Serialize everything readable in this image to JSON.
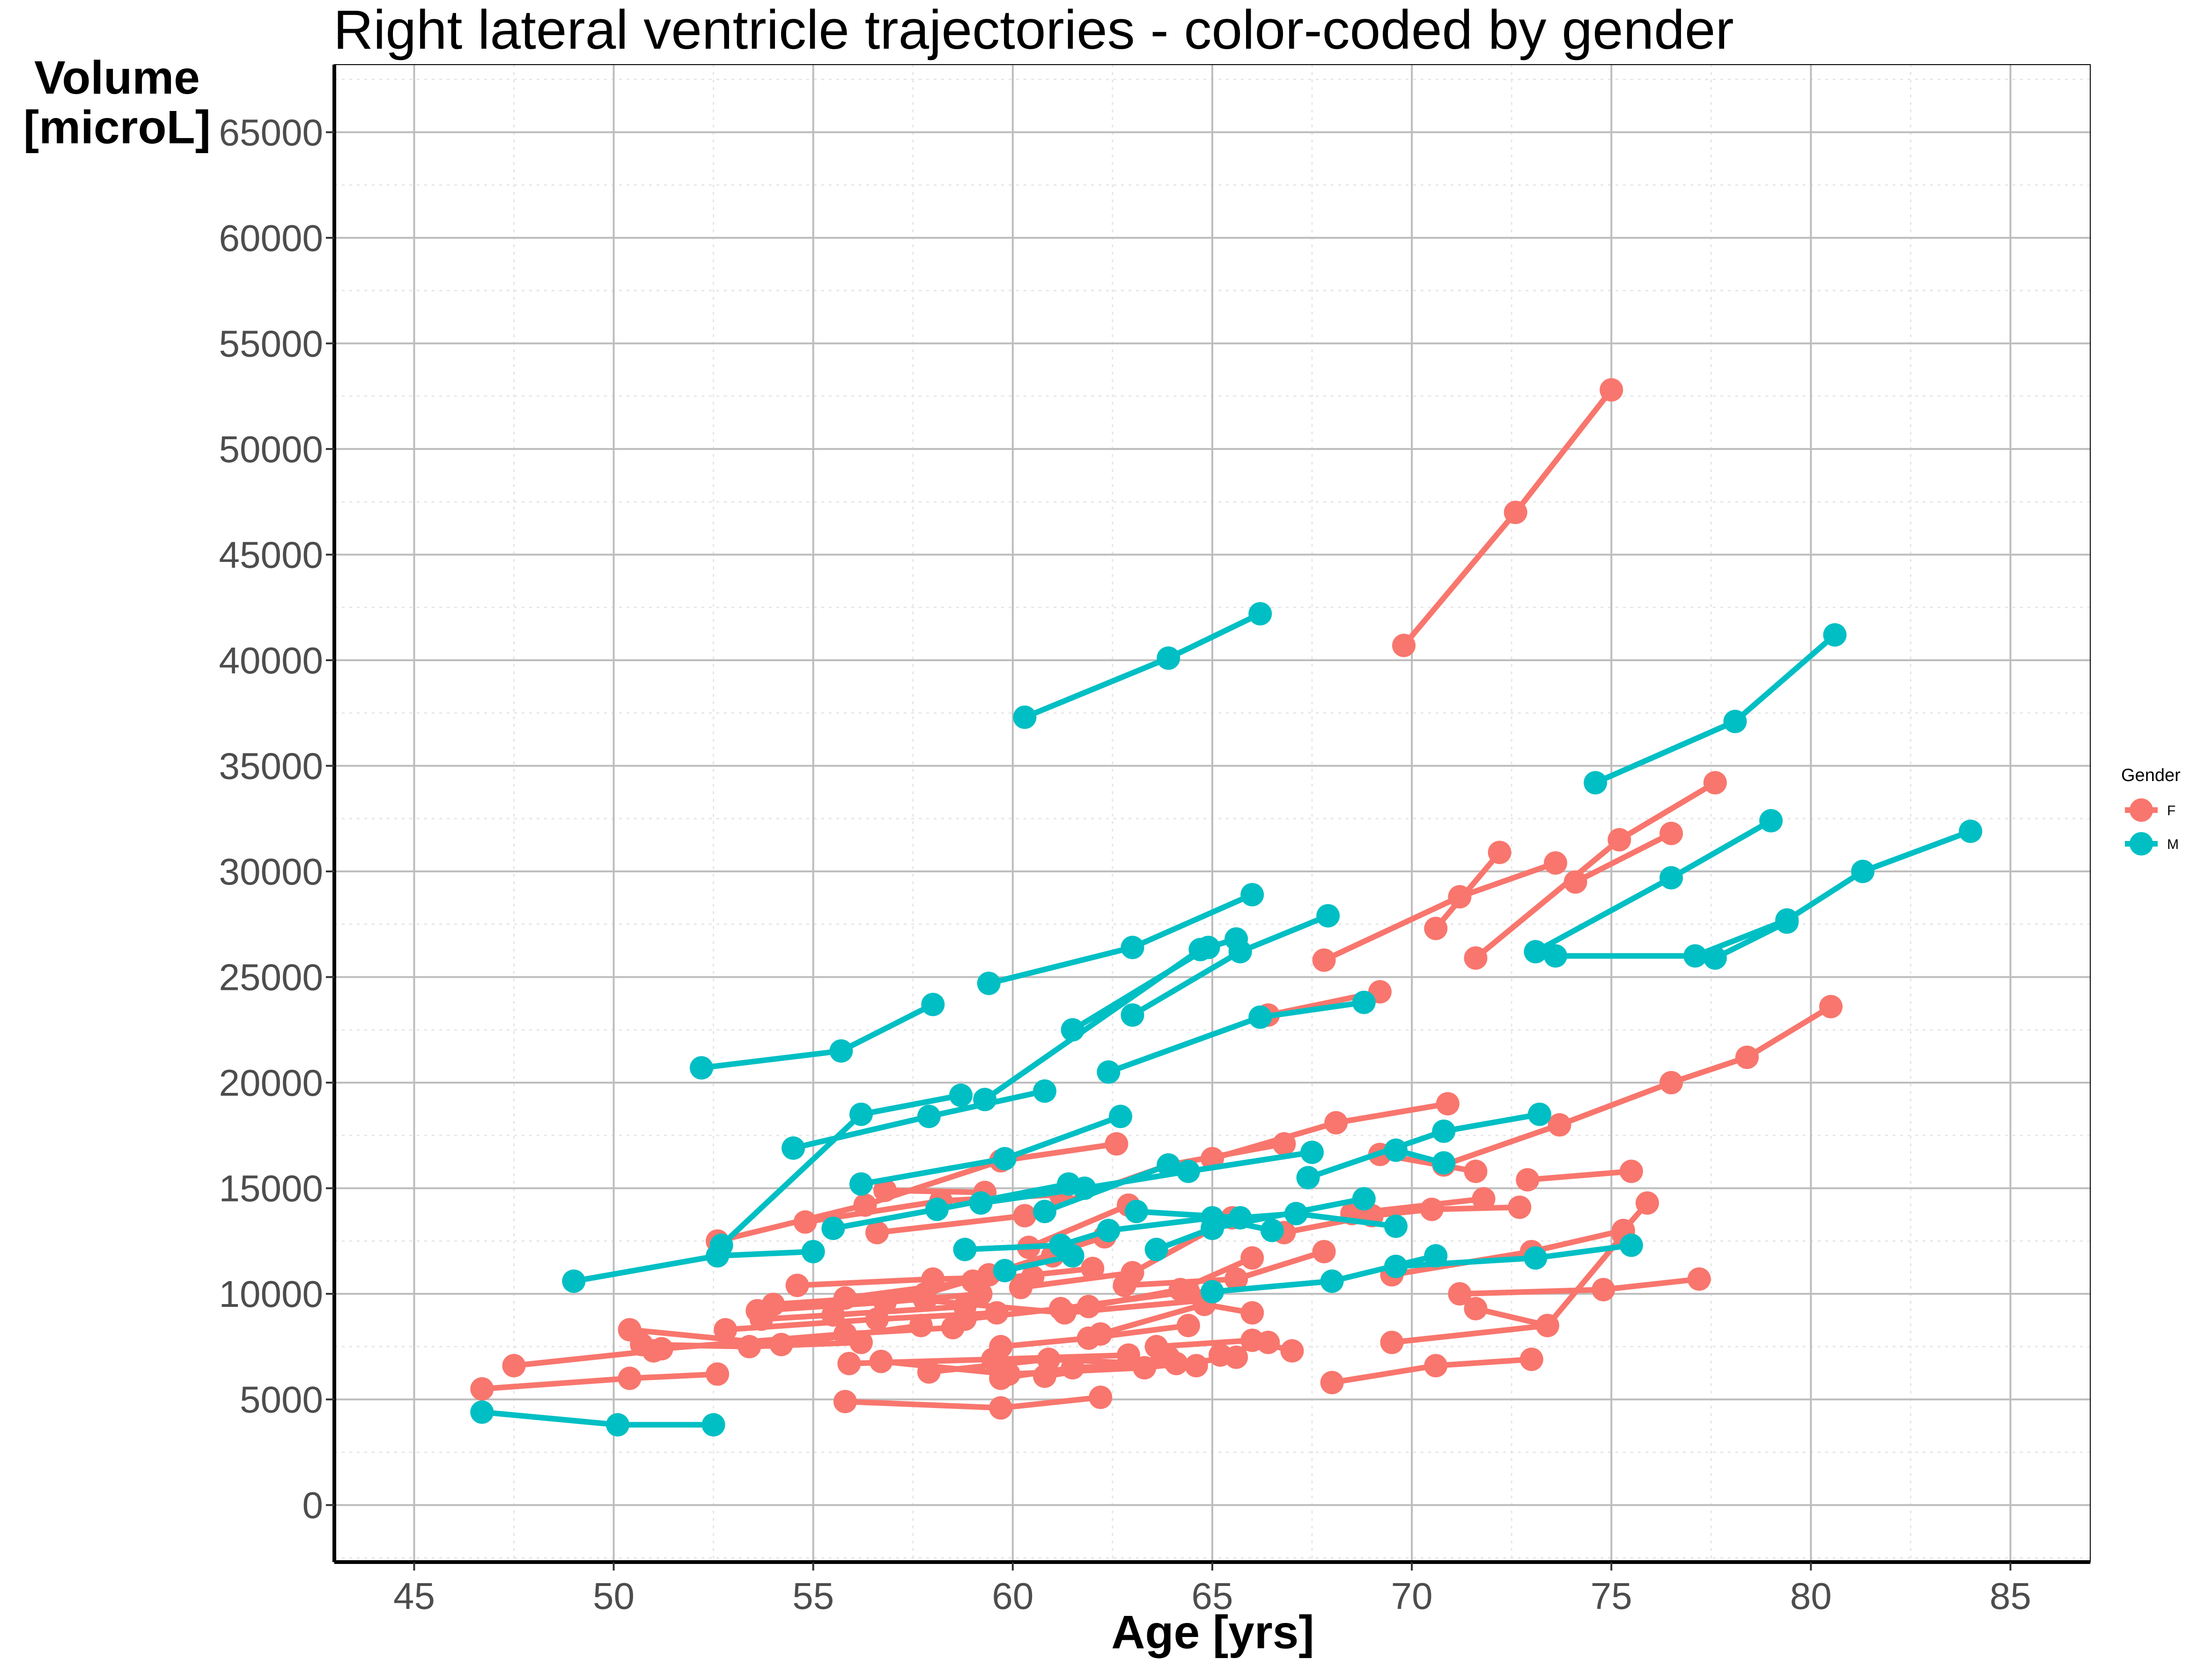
{
  "chart_data": {
    "type": "line",
    "title": "Right lateral ventricle trajectories - color-coded by gender",
    "xlabel": "Age [yrs]",
    "ylabel": "Volume [microL]",
    "xlim": [
      43,
      87
    ],
    "ylim": [
      -2700,
      68200
    ],
    "xticks": [
      45,
      50,
      55,
      60,
      65,
      70,
      75,
      80,
      85
    ],
    "yticks": [
      0,
      5000,
      10000,
      15000,
      20000,
      25000,
      30000,
      35000,
      40000,
      45000,
      50000,
      55000,
      60000,
      65000
    ],
    "grid": true,
    "legend": {
      "title": "Gender",
      "placement": "right",
      "entries": [
        {
          "label": "F",
          "color": "#F8766D"
        },
        {
          "label": "M",
          "color": "#00BFC4"
        }
      ]
    },
    "colors": {
      "F": "#F8766D",
      "M": "#00BFC4"
    },
    "series": [
      {
        "group": "F",
        "points": [
          [
            69.8,
            40700
          ],
          [
            72.6,
            47000
          ],
          [
            75.0,
            52800
          ]
        ]
      },
      {
        "group": "F",
        "points": [
          [
            67.8,
            25800
          ],
          [
            71.2,
            28800
          ],
          [
            73.6,
            30400
          ]
        ]
      },
      {
        "group": "F",
        "points": [
          [
            70.6,
            27300
          ],
          [
            72.2,
            30900
          ]
        ]
      },
      {
        "group": "F",
        "points": [
          [
            71.6,
            25900
          ],
          [
            75.2,
            31500
          ],
          [
            77.6,
            34200
          ]
        ]
      },
      {
        "group": "F",
        "points": [
          [
            74.1,
            29500
          ],
          [
            76.5,
            31800
          ]
        ]
      },
      {
        "group": "F",
        "points": [
          [
            66.4,
            23200
          ],
          [
            69.2,
            24300
          ]
        ]
      },
      {
        "group": "F",
        "points": [
          [
            70.8,
            16100
          ],
          [
            73.7,
            18000
          ],
          [
            76.5,
            20000
          ],
          [
            78.4,
            21200
          ],
          [
            80.5,
            23600
          ]
        ]
      },
      {
        "group": "F",
        "points": [
          [
            65.0,
            16400
          ],
          [
            68.1,
            18100
          ],
          [
            70.9,
            19000
          ]
        ]
      },
      {
        "group": "F",
        "points": [
          [
            72.9,
            15400
          ],
          [
            75.5,
            15800
          ]
        ]
      },
      {
        "group": "F",
        "points": [
          [
            69.2,
            16600
          ],
          [
            71.6,
            15800
          ]
        ]
      },
      {
        "group": "F",
        "points": [
          [
            52.6,
            12500
          ],
          [
            56.3,
            14200
          ],
          [
            59.7,
            16300
          ],
          [
            62.6,
            17100
          ]
        ]
      },
      {
        "group": "F",
        "points": [
          [
            54.8,
            13400
          ],
          [
            58.2,
            14400
          ],
          [
            61.2,
            14700
          ]
        ]
      },
      {
        "group": "F",
        "points": [
          [
            56.8,
            14900
          ],
          [
            59.3,
            14800
          ]
        ]
      },
      {
        "group": "F",
        "points": [
          [
            56.6,
            12900
          ],
          [
            60.3,
            13700
          ],
          [
            63.9,
            16100
          ],
          [
            66.8,
            17100
          ]
        ]
      },
      {
        "group": "F",
        "points": [
          [
            60.4,
            12200
          ],
          [
            62.9,
            14200
          ]
        ]
      },
      {
        "group": "F",
        "points": [
          [
            66.8,
            12900
          ],
          [
            69.0,
            13700
          ],
          [
            70.5,
            14000
          ],
          [
            72.7,
            14100
          ]
        ]
      },
      {
        "group": "F",
        "points": [
          [
            68.5,
            13800
          ],
          [
            71.8,
            14500
          ]
        ]
      },
      {
        "group": "F",
        "points": [
          [
            69.5,
            10900
          ],
          [
            73.0,
            12000
          ],
          [
            75.3,
            13000
          ],
          [
            75.9,
            14300
          ]
        ]
      },
      {
        "group": "F",
        "points": [
          [
            71.2,
            10000
          ],
          [
            74.8,
            10200
          ],
          [
            77.2,
            10700
          ]
        ]
      },
      {
        "group": "F",
        "points": [
          [
            71.6,
            9300
          ],
          [
            73.4,
            8500
          ]
        ]
      },
      {
        "group": "F",
        "points": [
          [
            69.5,
            7700
          ],
          [
            73.4,
            8500
          ],
          [
            75.3,
            12800
          ]
        ]
      },
      {
        "group": "F",
        "points": [
          [
            68.0,
            5800
          ],
          [
            70.6,
            6600
          ],
          [
            73.0,
            6900
          ]
        ]
      },
      {
        "group": "F",
        "points": [
          [
            54.0,
            9500
          ],
          [
            57.8,
            10000
          ],
          [
            61.0,
            11800
          ]
        ]
      },
      {
        "group": "F",
        "points": [
          [
            54.6,
            10400
          ],
          [
            58.0,
            10700
          ],
          [
            60.5,
            10800
          ]
        ]
      },
      {
        "group": "F",
        "points": [
          [
            53.6,
            9200
          ],
          [
            56.8,
            9600
          ],
          [
            59.2,
            10000
          ]
        ]
      },
      {
        "group": "F",
        "points": [
          [
            53.7,
            8800
          ],
          [
            55.5,
            9000
          ],
          [
            58.8,
            9400
          ]
        ]
      },
      {
        "group": "F",
        "points": [
          [
            55.8,
            9800
          ],
          [
            59.0,
            10600
          ],
          [
            62.0,
            11200
          ]
        ]
      },
      {
        "group": "F",
        "points": [
          [
            59.4,
            10900
          ],
          [
            62.3,
            12700
          ]
        ]
      },
      {
        "group": "F",
        "points": [
          [
            58.8,
            8800
          ],
          [
            61.2,
            9300
          ],
          [
            64.4,
            10100
          ]
        ]
      },
      {
        "group": "F",
        "points": [
          [
            57.8,
            9700
          ],
          [
            61.3,
            9100
          ],
          [
            64.8,
            9700
          ]
        ]
      },
      {
        "group": "F",
        "points": [
          [
            62.8,
            10400
          ],
          [
            65.6,
            10700
          ],
          [
            67.8,
            12000
          ]
        ]
      },
      {
        "group": "F",
        "points": [
          [
            61.9,
            9400
          ],
          [
            64.2,
            10200
          ],
          [
            66.0,
            11700
          ]
        ]
      },
      {
        "group": "F",
        "points": [
          [
            60.2,
            10300
          ],
          [
            63.0,
            11000
          ],
          [
            65.5,
            13600
          ]
        ]
      },
      {
        "group": "F",
        "points": [
          [
            50.4,
            8300
          ],
          [
            54.2,
            7600
          ],
          [
            57.7,
            8500
          ]
        ]
      },
      {
        "group": "F",
        "points": [
          [
            50.7,
            7600
          ],
          [
            53.4,
            7500
          ],
          [
            56.2,
            7700
          ]
        ]
      },
      {
        "group": "F",
        "points": [
          [
            51.2,
            7400
          ],
          [
            55.8,
            8100
          ],
          [
            58.5,
            8400
          ]
        ]
      },
      {
        "group": "F",
        "points": [
          [
            52.8,
            8300
          ],
          [
            56.6,
            8800
          ],
          [
            59.6,
            9100
          ]
        ]
      },
      {
        "group": "F",
        "points": [
          [
            59.7,
            7500
          ],
          [
            61.9,
            7900
          ],
          [
            64.4,
            8500
          ]
        ]
      },
      {
        "group": "F",
        "points": [
          [
            62.2,
            8100
          ],
          [
            64.8,
            9500
          ],
          [
            66.0,
            9100
          ]
        ]
      },
      {
        "group": "F",
        "points": [
          [
            57.9,
            6300
          ],
          [
            60.9,
            6900
          ],
          [
            64.6,
            6600
          ]
        ]
      },
      {
        "group": "F",
        "points": [
          [
            56.7,
            6800
          ],
          [
            59.9,
            6200
          ],
          [
            63.3,
            6500
          ],
          [
            65.6,
            7000
          ]
        ]
      },
      {
        "group": "F",
        "points": [
          [
            55.9,
            6700
          ],
          [
            59.5,
            6900
          ],
          [
            62.9,
            7100
          ]
        ]
      },
      {
        "group": "F",
        "points": [
          [
            59.7,
            6000
          ],
          [
            61.5,
            6500
          ],
          [
            64.1,
            6700
          ]
        ]
      },
      {
        "group": "F",
        "points": [
          [
            60.8,
            6100
          ],
          [
            63.9,
            7000
          ]
        ]
      },
      {
        "group": "F",
        "points": [
          [
            63.6,
            7500
          ],
          [
            66.0,
            7800
          ],
          [
            67.0,
            7300
          ]
        ]
      },
      {
        "group": "F",
        "points": [
          [
            65.2,
            7100
          ],
          [
            66.4,
            7700
          ]
        ]
      },
      {
        "group": "F",
        "points": [
          [
            46.7,
            5500
          ],
          [
            50.4,
            6000
          ],
          [
            52.6,
            6200
          ]
        ]
      },
      {
        "group": "F",
        "points": [
          [
            47.5,
            6600
          ],
          [
            51.0,
            7300
          ]
        ]
      },
      {
        "group": "F",
        "points": [
          [
            55.8,
            4900
          ],
          [
            59.7,
            4600
          ],
          [
            62.2,
            5100
          ]
        ]
      },
      {
        "group": "M",
        "points": [
          [
            60.3,
            37300
          ],
          [
            63.9,
            40100
          ],
          [
            66.2,
            42200
          ]
        ]
      },
      {
        "group": "M",
        "points": [
          [
            74.6,
            34200
          ],
          [
            78.1,
            37100
          ],
          [
            80.6,
            41200
          ]
        ]
      },
      {
        "group": "M",
        "points": [
          [
            73.1,
            26200
          ],
          [
            76.5,
            29700
          ],
          [
            79.0,
            32400
          ]
        ]
      },
      {
        "group": "M",
        "points": [
          [
            73.6,
            26000
          ],
          [
            77.1,
            26000
          ],
          [
            79.4,
            27700
          ],
          [
            81.3,
            30000
          ],
          [
            84.0,
            31900
          ]
        ]
      },
      {
        "group": "M",
        "points": [
          [
            77.6,
            25900
          ],
          [
            79.4,
            27600
          ]
        ]
      },
      {
        "group": "M",
        "points": [
          [
            59.4,
            24700
          ],
          [
            63.0,
            26400
          ],
          [
            66.0,
            28900
          ]
        ]
      },
      {
        "group": "M",
        "points": [
          [
            61.5,
            22500
          ],
          [
            64.9,
            26400
          ],
          [
            65.6,
            26800
          ]
        ]
      },
      {
        "group": "M",
        "points": [
          [
            63.0,
            23200
          ],
          [
            65.7,
            26200
          ],
          [
            67.9,
            27900
          ]
        ]
      },
      {
        "group": "M",
        "points": [
          [
            62.4,
            20500
          ],
          [
            66.2,
            23100
          ],
          [
            68.8,
            23800
          ]
        ]
      },
      {
        "group": "M",
        "points": [
          [
            52.2,
            20700
          ],
          [
            55.7,
            21500
          ],
          [
            58.0,
            23700
          ]
        ]
      },
      {
        "group": "M",
        "points": [
          [
            54.5,
            16900
          ],
          [
            57.9,
            18400
          ],
          [
            60.8,
            19600
          ]
        ]
      },
      {
        "group": "M",
        "points": [
          [
            52.7,
            12300
          ],
          [
            56.2,
            18500
          ],
          [
            58.7,
            19400
          ]
        ]
      },
      {
        "group": "M",
        "points": [
          [
            56.2,
            15200
          ],
          [
            59.8,
            16400
          ],
          [
            62.7,
            18400
          ]
        ]
      },
      {
        "group": "M",
        "points": [
          [
            59.3,
            19200
          ],
          [
            64.7,
            26300
          ]
        ]
      },
      {
        "group": "M",
        "points": [
          [
            55.5,
            13100
          ],
          [
            58.1,
            14000
          ],
          [
            61.4,
            15200
          ]
        ]
      },
      {
        "group": "M",
        "points": [
          [
            59.2,
            14300
          ],
          [
            61.8,
            15000
          ],
          [
            64.4,
            15800
          ],
          [
            67.5,
            16700
          ]
        ]
      },
      {
        "group": "M",
        "points": [
          [
            60.8,
            13900
          ],
          [
            63.9,
            16100
          ]
        ]
      },
      {
        "group": "M",
        "points": [
          [
            58.8,
            12100
          ],
          [
            61.2,
            12300
          ],
          [
            62.4,
            13000
          ],
          [
            65.0,
            13600
          ],
          [
            66.5,
            13000
          ]
        ]
      },
      {
        "group": "M",
        "points": [
          [
            63.1,
            13900
          ],
          [
            65.7,
            13600
          ],
          [
            67.1,
            13800
          ],
          [
            69.6,
            13200
          ]
        ]
      },
      {
        "group": "M",
        "points": [
          [
            63.6,
            12100
          ],
          [
            65.0,
            13100
          ],
          [
            68.8,
            14500
          ]
        ]
      },
      {
        "group": "M",
        "points": [
          [
            67.4,
            15500
          ],
          [
            70.8,
            17700
          ],
          [
            73.2,
            18500
          ]
        ]
      },
      {
        "group": "M",
        "points": [
          [
            69.6,
            16800
          ],
          [
            70.8,
            16200
          ]
        ]
      },
      {
        "group": "M",
        "points": [
          [
            49.0,
            10600
          ],
          [
            52.6,
            11800
          ],
          [
            55.0,
            12000
          ]
        ]
      },
      {
        "group": "M",
        "points": [
          [
            65.0,
            10100
          ],
          [
            68.0,
            10600
          ],
          [
            70.6,
            11800
          ]
        ]
      },
      {
        "group": "M",
        "points": [
          [
            69.6,
            11300
          ],
          [
            73.1,
            11700
          ],
          [
            75.5,
            12300
          ]
        ]
      },
      {
        "group": "M",
        "points": [
          [
            59.8,
            11100
          ],
          [
            61.5,
            11800
          ]
        ]
      },
      {
        "group": "M",
        "points": [
          [
            46.7,
            4400
          ],
          [
            50.1,
            3800
          ],
          [
            52.5,
            3800
          ]
        ]
      }
    ]
  }
}
